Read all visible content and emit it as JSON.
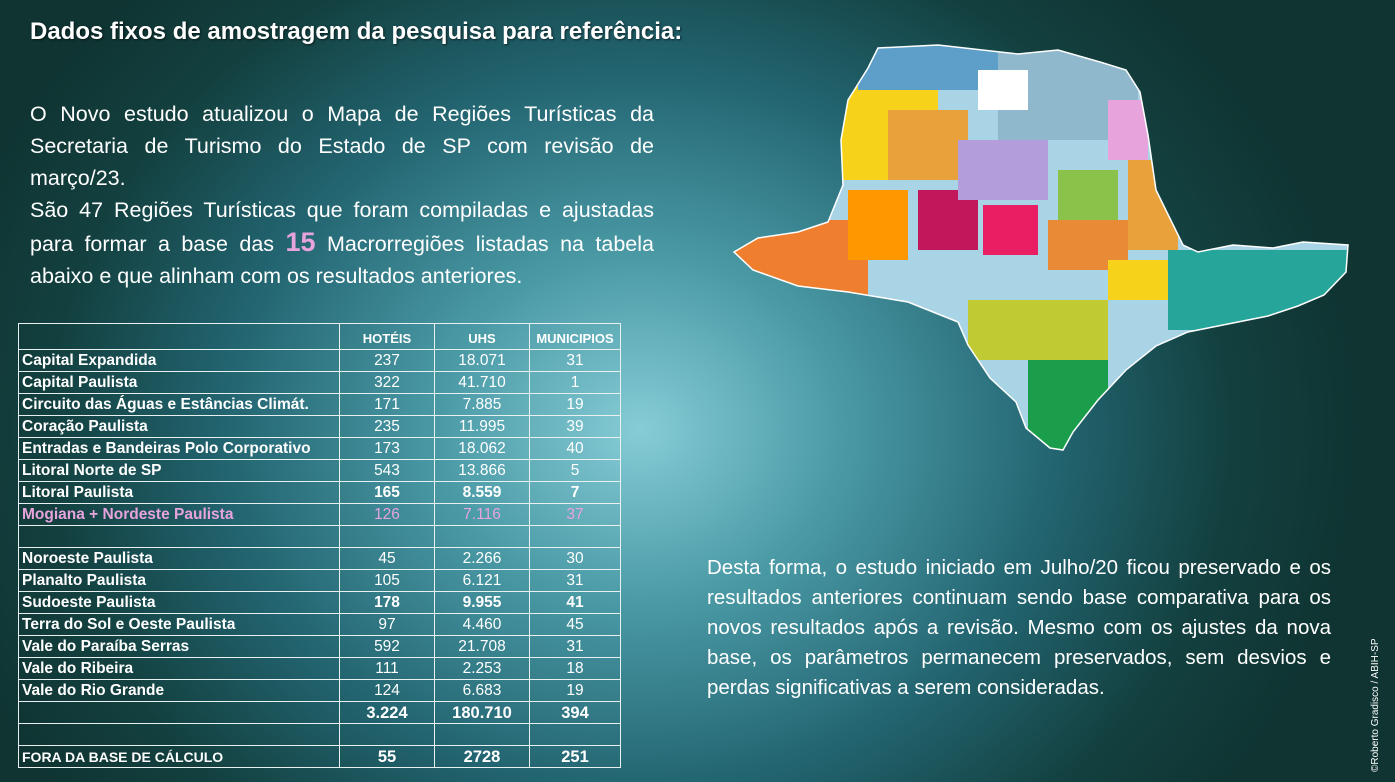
{
  "title": "Dados fixos de amostragem da pesquisa para referência:",
  "intro": {
    "p1": "O Novo estudo atualizou o Mapa de Regiões Turísticas da Secretaria de Turismo do Estado de SP com revisão de março/23.",
    "p2_a": "São 47 Regiões Turísticas que foram compiladas e ajustadas para formar a base das",
    "p2_highlight": "15",
    "p2_b": "Macrorregiões listadas na tabela abaixo e que alinham com os resultados anteriores."
  },
  "table": {
    "headers": [
      "HOTÉIS",
      "UHS",
      "MUNICIPIOS"
    ],
    "rows": [
      {
        "name": "Capital Expandida",
        "hoteis": "237",
        "uhs": "18.071",
        "municipios": "31"
      },
      {
        "name": "Capital Paulista",
        "hoteis": "322",
        "uhs": "41.710",
        "municipios": "1"
      },
      {
        "name": "Circuito das Águas e Estâncias Climát.",
        "hoteis": "171",
        "uhs": "7.885",
        "municipios": "19"
      },
      {
        "name": "Coração Paulista",
        "hoteis": "235",
        "uhs": "11.995",
        "municipios": "39"
      },
      {
        "name": "Entradas e Bandeiras Polo Corporativo",
        "hoteis": "173",
        "uhs": "18.062",
        "municipios": "40"
      },
      {
        "name": "Litoral Norte de SP",
        "hoteis": "543",
        "uhs": "13.866",
        "municipios": "5"
      },
      {
        "name": "Litoral Paulista",
        "hoteis": "165",
        "uhs": "8.559",
        "municipios": "7"
      },
      {
        "name": "Mogiana + Nordeste Paulista",
        "hoteis": "126",
        "uhs": "7.116",
        "municipios": "37"
      },
      {
        "name": "Noroeste Paulista",
        "hoteis": "45",
        "uhs": "2.266",
        "municipios": "30"
      },
      {
        "name": "Planalto Paulista",
        "hoteis": "105",
        "uhs": "6.121",
        "municipios": "31"
      },
      {
        "name": "Sudoeste Paulista",
        "hoteis": "178",
        "uhs": "9.955",
        "municipios": "41"
      },
      {
        "name": "Terra do Sol e Oeste Paulista",
        "hoteis": "97",
        "uhs": "4.460",
        "municipios": "45"
      },
      {
        "name": "Vale do Paraíba Serras",
        "hoteis": "592",
        "uhs": "21.708",
        "municipios": "31"
      },
      {
        "name": "Vale do Ribeira",
        "hoteis": "111",
        "uhs": "2.253",
        "municipios": "18"
      },
      {
        "name": "Vale do Rio Grande",
        "hoteis": "124",
        "uhs": "6.683",
        "municipios": "19"
      }
    ],
    "total": {
      "hoteis": "3.224",
      "uhs": "180.710",
      "municipios": "394"
    },
    "fora": {
      "name": "FORA DA BASE DE CÁLCULO",
      "hoteis": "55",
      "uhs": "2728",
      "municipios": "251"
    }
  },
  "closing": "Desta forma, o estudo iniciado em Julho/20 ficou preservado e os resultados anteriores continuam sendo base comparativa para os novos resultados após a revisão. Mesmo com os ajustes da nova base, os parâmetros permanecem preservados, sem desvios e perdas significativas a serem consideradas.",
  "credit": "©Roberto Gradisco / ABIH-SP",
  "map": {
    "icon": "sao-paulo-state-regions-map",
    "colors": [
      "#f7d21a",
      "#e9a23b",
      "#ef7f2e",
      "#c2185b",
      "#e91e63",
      "#8bc34a",
      "#4caf50",
      "#26a69a",
      "#5e9fc9",
      "#a8d4e6",
      "#ffffff",
      "#b39ddb",
      "#c0ca33",
      "#ff9800",
      "#1b9e4b"
    ]
  }
}
